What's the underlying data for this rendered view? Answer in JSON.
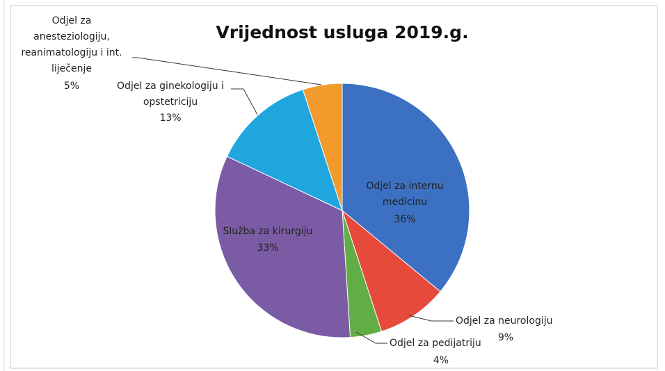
{
  "chart_data": {
    "type": "pie",
    "title": "Vrijednost usluga 2019.g.",
    "categories": [
      "Odjel za internu medicinu",
      "Odjel za neurologiju",
      "Odjel za pedijatriju",
      "Služba za kirurgiju",
      "Odjel za ginekologiju i opstetriciju",
      "Odjel za anesteziologiju, reanimatologiju i int. liječenje"
    ],
    "values": [
      36,
      9,
      4,
      33,
      13,
      5
    ],
    "value_labels": [
      "36%",
      "9%",
      "4%",
      "33%",
      "13%",
      "5%"
    ],
    "colors": [
      "#3c70c2",
      "#e64a3b",
      "#63ad47",
      "#7a5ba4",
      "#1fa6df",
      "#f29a2c"
    ]
  }
}
